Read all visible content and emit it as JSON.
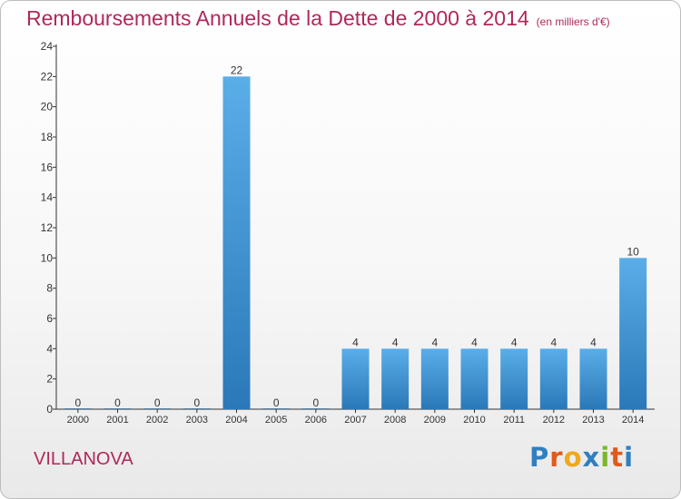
{
  "title": "Remboursements Annuels de la Dette de 2000 à 2014",
  "unit_label": "(en milliers d'€)",
  "location": "VILLANOVA",
  "brand": {
    "letters": [
      "P",
      "r",
      "o",
      "x",
      "i",
      "t",
      "i"
    ],
    "colors": [
      "#2f7fc1",
      "#e05a1c",
      "#f0a81c",
      "#2f7fc1",
      "#7ab72e",
      "#e05a1c",
      "#2f7fc1"
    ]
  },
  "colors": {
    "title": "#b0285b",
    "bar_light": "#5aaee8",
    "bar_dark": "#2a78b8",
    "axis": "#333333",
    "grid": "#dddddd"
  },
  "chart_data": {
    "type": "bar",
    "categories": [
      "2000",
      "2001",
      "2002",
      "2003",
      "2004",
      "2005",
      "2006",
      "2007",
      "2008",
      "2009",
      "2010",
      "2011",
      "2012",
      "2013",
      "2014"
    ],
    "values": [
      0,
      0,
      0,
      0,
      22,
      0,
      0,
      4,
      4,
      4,
      4,
      4,
      4,
      4,
      10
    ],
    "ylim": [
      0,
      24
    ],
    "yticks": [
      0,
      2,
      4,
      6,
      8,
      10,
      12,
      14,
      16,
      18,
      20,
      22,
      24
    ],
    "grid": false,
    "data_labels": true
  }
}
